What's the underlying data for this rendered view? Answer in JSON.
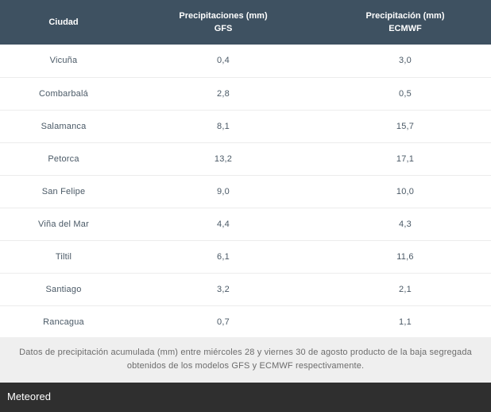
{
  "table": {
    "headers": {
      "city": "Ciudad",
      "gfs_line1": "Precipitaciones (mm)",
      "gfs_line2": "GFS",
      "ecmwf_line1": "Precipitación (mm)",
      "ecmwf_line2": "ECMWF"
    },
    "rows": [
      {
        "city": "Vicuña",
        "gfs": "0,4",
        "ecmwf": "3,0"
      },
      {
        "city": "Combarbalá",
        "gfs": "2,8",
        "ecmwf": "0,5"
      },
      {
        "city": "Salamanca",
        "gfs": "8,1",
        "ecmwf": "15,7"
      },
      {
        "city": "Petorca",
        "gfs": "13,2",
        "ecmwf": "17,1"
      },
      {
        "city": "San Felipe",
        "gfs": "9,0",
        "ecmwf": "10,0"
      },
      {
        "city": "Viña del Mar",
        "gfs": "4,4",
        "ecmwf": "4,3"
      },
      {
        "city": "Tiltil",
        "gfs": "6,1",
        "ecmwf": "11,6"
      },
      {
        "city": "Santiago",
        "gfs": "3,2",
        "ecmwf": "2,1"
      },
      {
        "city": "Rancagua",
        "gfs": "0,7",
        "ecmwf": "1,1"
      }
    ]
  },
  "caption": "Datos de precipitación acumulada (mm) entre miércoles 28 y viernes 30 de agosto producto de la baja segregada obtenidos de los modelos GFS y ECMWF respectivamente.",
  "footer": {
    "brand": "Meteored"
  },
  "colors": {
    "header_bg": "#3e5161",
    "caption_bg": "#efefef",
    "footer_bg": "#2f2f2f"
  }
}
